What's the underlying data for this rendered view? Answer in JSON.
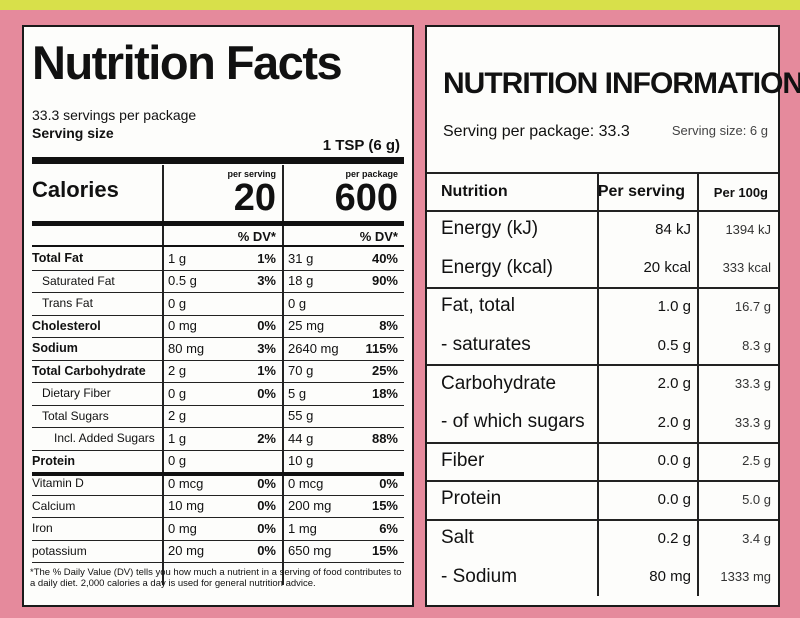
{
  "left": {
    "title": "Nutrition Facts",
    "servings": "33.3 servings per package",
    "serving_size_label": "Serving size",
    "serving_size": "1 TSP (6 g)",
    "calories_label": "Calories",
    "per_serving_label": "per serving",
    "per_serving_calories": 20,
    "per_package_label": "per package",
    "per_package_calories": 600,
    "dv_header_serving": "% DV*",
    "dv_header_package": "% DV*",
    "rows": [
      {
        "name": "Total Fat",
        "serving": "1 g",
        "serving_dv": "1%",
        "package": "31 g",
        "package_dv": "40%"
      },
      {
        "name": "Saturated Fat",
        "serving": "0.5 g",
        "serving_dv": "3%",
        "package": "18 g",
        "package_dv": "90%"
      },
      {
        "name": "Trans Fat",
        "serving": "0 g",
        "serving_dv": null,
        "package": "0 g",
        "package_dv": null
      },
      {
        "name": "Cholesterol",
        "serving": "0 mg",
        "serving_dv": "0%",
        "package": "25 mg",
        "package_dv": "8%"
      },
      {
        "name": "Sodium",
        "serving": "80 mg",
        "serving_dv": "3%",
        "package": "2640 mg",
        "package_dv": "115%"
      },
      {
        "name": "Total Carbohydrate",
        "serving": "2 g",
        "serving_dv": "1%",
        "package": "70 g",
        "package_dv": "25%"
      },
      {
        "name": "Dietary Fiber",
        "serving": "0 g",
        "serving_dv": "0%",
        "package": "5 g",
        "package_dv": "18%"
      },
      {
        "name": "Total Sugars",
        "serving": "2 g",
        "serving_dv": null,
        "package": "55 g",
        "package_dv": null
      },
      {
        "name": "Incl. Added Sugars",
        "serving": "1 g",
        "serving_dv": "2%",
        "package": "44 g",
        "package_dv": "88%"
      },
      {
        "name": "Protein",
        "serving": "0 g",
        "serving_dv": null,
        "package": "10 g",
        "package_dv": null
      },
      {
        "name": "Vitamin D",
        "serving": "0 mcg",
        "serving_dv": "0%",
        "package": "0 mcg",
        "package_dv": "0%"
      },
      {
        "name": "Calcium",
        "serving": "10 mg",
        "serving_dv": "0%",
        "package": "200 mg",
        "package_dv": "15%"
      },
      {
        "name": "Iron",
        "serving": "0 mg",
        "serving_dv": "0%",
        "package": "1 mg",
        "package_dv": "6%"
      },
      {
        "name": "potassium",
        "serving": "20 mg",
        "serving_dv": "0%",
        "package": "650 mg",
        "package_dv": "15%"
      }
    ],
    "footnote": "*The % Daily Value (DV) tells you how much a nutrient in a serving of food contributes to a daily diet. 2,000 calories a day is used for general nutrition advice."
  },
  "right": {
    "title": "NUTRITION INFORMATION",
    "servings": "Serving per package: 33.3",
    "serving_size": "Serving size: 6 g",
    "headers": [
      "Nutrition",
      "Per serving",
      "Per 100g"
    ],
    "rows": [
      {
        "name": "Energy (kJ)",
        "per_serving": "84 kJ",
        "per_100g": "1394 kJ"
      },
      {
        "name": "Energy (kcal)",
        "per_serving": "20 kcal",
        "per_100g": "333 kcal"
      },
      {
        "name": "Fat, total",
        "per_serving": "1.0 g",
        "per_100g": "16.7 g"
      },
      {
        "name": "- saturates",
        "per_serving": "0.5 g",
        "per_100g": "8.3 g"
      },
      {
        "name": "Carbohydrate",
        "per_serving": "2.0 g",
        "per_100g": "33.3 g"
      },
      {
        "name": "- of which sugars",
        "per_serving": "2.0 g",
        "per_100g": "33.3 g"
      },
      {
        "name": "Fiber",
        "per_serving": "0.0 g",
        "per_100g": "2.5 g"
      },
      {
        "name": "Protein",
        "per_serving": "0.0 g",
        "per_100g": "5.0 g"
      },
      {
        "name": "Salt",
        "per_serving": "0.2 g",
        "per_100g": "3.4 g"
      },
      {
        "name": "- Sodium",
        "per_serving": "80 mg",
        "per_100g": "1333 mg"
      }
    ]
  }
}
